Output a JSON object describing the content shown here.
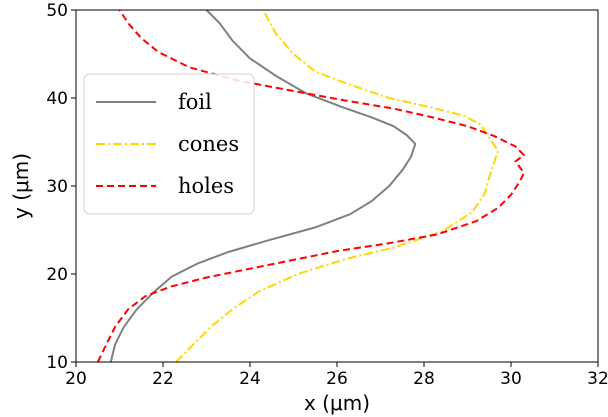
{
  "chart_data": {
    "type": "line",
    "xlabel": "x (μm)",
    "ylabel": "y (μm)",
    "xlim": [
      20,
      32
    ],
    "ylim": [
      10,
      50
    ],
    "xticks": [
      "20",
      "22",
      "24",
      "26",
      "28",
      "30",
      "32"
    ],
    "yticks": [
      "10",
      "20",
      "30",
      "40",
      "50"
    ],
    "grid": false,
    "legend_position": "center-left",
    "series": [
      {
        "name": "foil",
        "color": "#808080",
        "style": "solid",
        "points": [
          [
            20.8,
            10
          ],
          [
            20.9,
            12
          ],
          [
            21.1,
            14
          ],
          [
            21.4,
            16
          ],
          [
            21.8,
            18
          ],
          [
            22.2,
            19.7
          ],
          [
            22.8,
            21.2
          ],
          [
            23.5,
            22.5
          ],
          [
            24.4,
            23.8
          ],
          [
            25.5,
            25.3
          ],
          [
            26.3,
            26.8
          ],
          [
            26.8,
            28.3
          ],
          [
            27.2,
            30
          ],
          [
            27.5,
            31.8
          ],
          [
            27.7,
            33.3
          ],
          [
            27.8,
            34.8
          ],
          [
            27.6,
            35.8
          ],
          [
            27.3,
            36.8
          ],
          [
            26.8,
            37.8
          ],
          [
            26.1,
            39
          ],
          [
            25.3,
            40.5
          ],
          [
            24.6,
            42.5
          ],
          [
            24.0,
            44.5
          ],
          [
            23.6,
            46.5
          ],
          [
            23.3,
            48.5
          ],
          [
            23.0,
            50
          ]
        ]
      },
      {
        "name": "cones",
        "color": "#FFD700",
        "style": "dashdot",
        "points": [
          [
            22.3,
            10
          ],
          [
            22.7,
            12
          ],
          [
            23.1,
            14
          ],
          [
            23.6,
            16
          ],
          [
            24.2,
            18
          ],
          [
            25.1,
            20
          ],
          [
            26.2,
            21.7
          ],
          [
            27.3,
            23
          ],
          [
            28.4,
            24.8
          ],
          [
            29.1,
            27
          ],
          [
            29.4,
            29.2
          ],
          [
            29.5,
            31
          ],
          [
            29.6,
            32.5
          ],
          [
            29.7,
            34
          ],
          [
            29.5,
            35.5
          ],
          [
            29.3,
            37
          ],
          [
            28.9,
            38
          ],
          [
            28.1,
            39
          ],
          [
            27.2,
            40
          ],
          [
            26.3,
            41.5
          ],
          [
            25.5,
            43
          ],
          [
            25.0,
            45
          ],
          [
            24.6,
            47.3
          ],
          [
            24.3,
            50
          ]
        ]
      },
      {
        "name": "holes",
        "color": "#FF0000",
        "style": "dashed",
        "points": [
          [
            20.5,
            10
          ],
          [
            20.7,
            12
          ],
          [
            20.9,
            14
          ],
          [
            21.2,
            16
          ],
          [
            21.6,
            17.5
          ],
          [
            22.2,
            18.6
          ],
          [
            23.0,
            19.6
          ],
          [
            24.0,
            20.6
          ],
          [
            25.0,
            21.6
          ],
          [
            26.0,
            22.6
          ],
          [
            27.2,
            23.5
          ],
          [
            28.3,
            24.5
          ],
          [
            29.2,
            26
          ],
          [
            29.7,
            27.5
          ],
          [
            30.0,
            29
          ],
          [
            30.2,
            30.5
          ],
          [
            30.3,
            31.5
          ],
          [
            30.1,
            32.8
          ],
          [
            30.3,
            33.5
          ],
          [
            30.1,
            34.5
          ],
          [
            29.6,
            35.7
          ],
          [
            29.0,
            36.8
          ],
          [
            28.2,
            37.8
          ],
          [
            27.3,
            38.8
          ],
          [
            26.2,
            39.7
          ],
          [
            25.0,
            40.8
          ],
          [
            23.7,
            42
          ],
          [
            22.6,
            43.5
          ],
          [
            21.9,
            45.2
          ],
          [
            21.5,
            46.8
          ],
          [
            21.2,
            48.5
          ],
          [
            21.0,
            50
          ]
        ]
      }
    ]
  }
}
